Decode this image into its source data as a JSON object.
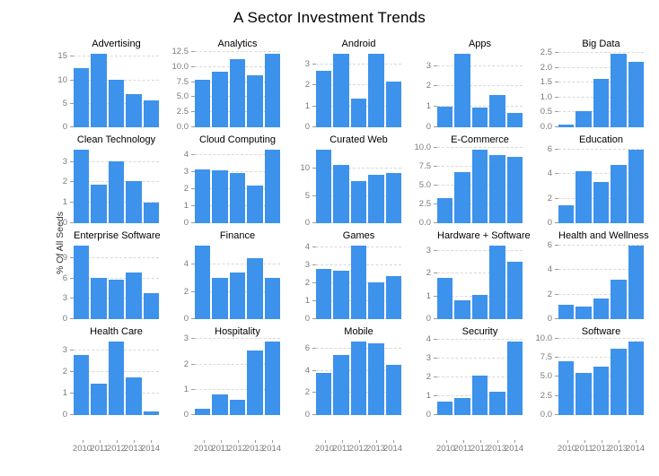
{
  "chart_data": {
    "type": "bar",
    "title": "A Sector Investment Trends",
    "ylabel": "% Of All Seeds",
    "categories": [
      "2010",
      "2011",
      "2012",
      "2013",
      "2014"
    ],
    "layout": {
      "rows": 4,
      "cols": 5,
      "grid": "dashed-horizontal",
      "legend": "none",
      "x_labels_bottom_row_only": true
    },
    "colors": {
      "bar": "#3d92ec",
      "gridline": "#d8d8d8",
      "tick_label": "#7a7a7a",
      "title_text": "#000000"
    },
    "series": [
      {
        "name": "Advertising",
        "yticks": [
          "0",
          "5",
          "10",
          "15"
        ],
        "ymax": 16.4,
        "values": [
          12.6,
          15.7,
          10.1,
          7.1,
          5.8
        ]
      },
      {
        "name": "Analytics",
        "yticks": [
          "0.0",
          "2.5",
          "5.0",
          "7.5",
          "10.0",
          "12.5"
        ],
        "ymax": 12.8,
        "values": [
          7.9,
          9.3,
          11.3,
          8.7,
          12.2
        ]
      },
      {
        "name": "Android",
        "yticks": [
          "0",
          "1",
          "2",
          "3"
        ],
        "ymax": 3.68,
        "values": [
          2.7,
          3.5,
          1.35,
          3.5,
          2.2
        ]
      },
      {
        "name": "Apps",
        "yticks": [
          "0",
          "1",
          "2",
          "3"
        ],
        "ymax": 3.78,
        "values": [
          1.0,
          3.6,
          0.95,
          1.6,
          0.7
        ]
      },
      {
        "name": "Big Data",
        "yticks": [
          "0.0",
          "0.5",
          "1.0",
          "1.5",
          "2.0",
          "2.5"
        ],
        "ymax": 2.6,
        "values": [
          0.1,
          0.55,
          1.63,
          2.48,
          2.2
        ]
      },
      {
        "name": "Clean Technology",
        "yticks": [
          "0",
          "1",
          "2",
          "3"
        ],
        "ymax": 3.78,
        "values": [
          3.6,
          1.9,
          3.05,
          2.05,
          1.0
        ]
      },
      {
        "name": "Cloud Computing",
        "yticks": [
          "0",
          "1",
          "2",
          "3",
          "4"
        ],
        "ymax": 4.5,
        "values": [
          3.15,
          3.1,
          2.95,
          2.2,
          4.3
        ]
      },
      {
        "name": "Curated Web",
        "yticks": [
          "0",
          "5",
          "10"
        ],
        "ymax": 14.2,
        "values": [
          13.5,
          10.8,
          7.7,
          8.9,
          9.2
        ]
      },
      {
        "name": "E-Commerce",
        "yticks": [
          "0.0",
          "2.5",
          "5.0",
          "7.5",
          "10.0"
        ],
        "ymax": 10.2,
        "values": [
          3.3,
          6.8,
          9.7,
          9.0,
          8.8
        ]
      },
      {
        "name": "Education",
        "yticks": [
          "0",
          "2",
          "4",
          "6"
        ],
        "ymax": 6.3,
        "values": [
          1.45,
          4.25,
          3.4,
          4.75,
          6.0
        ]
      },
      {
        "name": "Enterprise Software",
        "yticks": [
          "0",
          "3",
          "6",
          "9"
        ],
        "ymax": 11.4,
        "values": [
          10.9,
          6.05,
          5.85,
          6.85,
          3.9
        ]
      },
      {
        "name": "Finance",
        "yticks": [
          "0",
          "2",
          "4"
        ],
        "ymax": 5.65,
        "values": [
          5.4,
          3.0,
          3.45,
          4.45,
          3.05
        ]
      },
      {
        "name": "Games",
        "yticks": [
          "0",
          "1",
          "2",
          "3",
          "4"
        ],
        "ymax": 4.3,
        "values": [
          2.8,
          2.7,
          4.1,
          2.05,
          2.4
        ]
      },
      {
        "name": "Hardware + Software",
        "yticks": [
          "0",
          "1",
          "2",
          "3"
        ],
        "ymax": 3.4,
        "values": [
          1.8,
          0.85,
          1.05,
          3.25,
          2.55
        ]
      },
      {
        "name": "Health and Wellness",
        "yticks": [
          "0",
          "2",
          "4",
          "6"
        ],
        "ymax": 6.3,
        "values": [
          1.15,
          1.0,
          1.7,
          3.2,
          6.0
        ]
      },
      {
        "name": "Health Care",
        "yticks": [
          "0",
          "1",
          "2",
          "3"
        ],
        "ymax": 3.6,
        "values": [
          2.8,
          1.45,
          3.45,
          1.75,
          0.15
        ]
      },
      {
        "name": "Hospitality",
        "yticks": [
          "0",
          "1",
          "2",
          "3"
        ],
        "ymax": 3.05,
        "values": [
          0.25,
          0.8,
          0.6,
          2.55,
          2.9
        ]
      },
      {
        "name": "Mobile",
        "yticks": [
          "0",
          "2",
          "4",
          "6"
        ],
        "ymax": 7.0,
        "values": [
          3.8,
          5.45,
          6.7,
          6.5,
          4.6
        ]
      },
      {
        "name": "Security",
        "yticks": [
          "0",
          "1",
          "2",
          "3",
          "4"
        ],
        "ymax": 4.1,
        "values": [
          0.7,
          0.9,
          2.1,
          1.25,
          3.9
        ]
      },
      {
        "name": "Software",
        "yticks": [
          "0.0",
          "2.5",
          "5.0",
          "7.5",
          "10.0"
        ],
        "ymax": 10.1,
        "values": [
          7.0,
          5.5,
          6.3,
          8.65,
          9.6
        ]
      }
    ]
  }
}
